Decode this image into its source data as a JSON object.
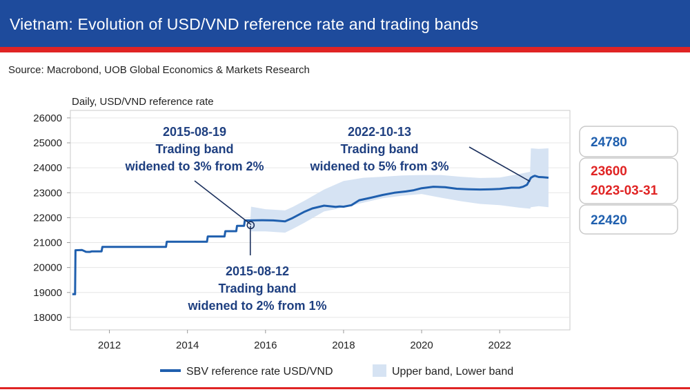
{
  "header": {
    "title": "Vietnam: Evolution of USD/VND reference rate and trading bands",
    "source": "Source: Macrobond, UOB Global Economics & Markets Research"
  },
  "colors": {
    "header_bg": "#1e4b9c",
    "accent_red": "#e02424",
    "line": "#1f5fae",
    "band": "#d6e3f3",
    "annotation": "#1e3f80",
    "box_blue": "#1f5fae",
    "box_red": "#e02424"
  },
  "chart_data": {
    "type": "line",
    "ylabel": "Daily, USD/VND reference rate",
    "xlim": [
      2011.0,
      2023.8
    ],
    "ylim": [
      17500,
      26300
    ],
    "yticks": [
      18000,
      19000,
      20000,
      21000,
      22000,
      23000,
      24000,
      25000,
      26000
    ],
    "xticks": [
      2012,
      2014,
      2016,
      2018,
      2020,
      2022
    ],
    "grid": "horizontal",
    "legend_position": "bottom",
    "series": [
      {
        "name": "SBV reference rate USD/VND",
        "style": "line",
        "x": [
          2011.05,
          2011.12,
          2011.13,
          2011.3,
          2011.4,
          2011.5,
          2011.55,
          2011.8,
          2011.82,
          2012.0,
          2012.02,
          2013.45,
          2013.47,
          2014.5,
          2014.52,
          2014.95,
          2014.97,
          2015.25,
          2015.27,
          2015.45,
          2015.47,
          2015.61,
          2015.63,
          2015.9,
          2016.2,
          2016.5,
          2016.7,
          2017.0,
          2017.2,
          2017.5,
          2017.8,
          2017.9,
          2018.0,
          2018.2,
          2018.4,
          2018.7,
          2019.0,
          2019.3,
          2019.6,
          2019.8,
          2020.0,
          2020.3,
          2020.6,
          2020.9,
          2021.2,
          2021.5,
          2021.8,
          2022.0,
          2022.3,
          2022.5,
          2022.6,
          2022.7,
          2022.8,
          2022.85,
          2022.9,
          2023.0,
          2023.1,
          2023.2,
          2023.25
        ],
        "y": [
          18932,
          18932,
          20693,
          20703,
          20630,
          20628,
          20650,
          20650,
          20828,
          20828,
          20828,
          20828,
          21036,
          21036,
          21246,
          21246,
          21458,
          21458,
          21673,
          21673,
          21890,
          21890,
          21890,
          21898,
          21890,
          21850,
          21990,
          22240,
          22370,
          22480,
          22430,
          22450,
          22440,
          22500,
          22700,
          22800,
          22910,
          23000,
          23050,
          23100,
          23180,
          23240,
          23220,
          23160,
          23140,
          23130,
          23140,
          23150,
          23200,
          23200,
          23240,
          23320,
          23600,
          23650,
          23680,
          23630,
          23620,
          23610,
          23600
        ]
      },
      {
        "name": "Upper band, Lower band",
        "style": "band",
        "x": [
          2011.05,
          2015.61,
          2015.63,
          2016.0,
          2016.5,
          2016.7,
          2017.0,
          2017.5,
          2018.0,
          2018.5,
          2019.0,
          2019.5,
          2020.0,
          2020.5,
          2021.0,
          2021.5,
          2022.0,
          2022.5,
          2022.78,
          2022.8,
          2023.0,
          2023.25
        ],
        "upper": [
          18932,
          21890,
          22440,
          22340,
          22290,
          22430,
          22680,
          23130,
          23470,
          23600,
          23640,
          23690,
          23710,
          23710,
          23640,
          23590,
          23610,
          23750,
          23840,
          24780,
          24760,
          24780
        ],
        "lower": [
          18932,
          21890,
          21450,
          21450,
          21400,
          21550,
          21800,
          22250,
          22410,
          22600,
          22780,
          22880,
          22950,
          22800,
          22660,
          22550,
          22500,
          22400,
          22360,
          22420,
          22460,
          22420
        ]
      }
    ],
    "annotations": [
      {
        "id": "ann1",
        "lines": [
          "2015-08-19",
          "Trading band",
          "widened to 3% from 2%"
        ],
        "x": 2015.63,
        "y": 21720
      },
      {
        "id": "ann2",
        "lines": [
          "2015-08-12",
          "Trading band",
          "widened to 2% from 1%"
        ],
        "x": 2015.61,
        "y": 21673
      },
      {
        "id": "ann3",
        "lines": [
          "2022-10-13",
          "Trading band",
          "widened to 5% from 3%"
        ],
        "x": 2022.78,
        "y": 23450
      }
    ],
    "callouts": {
      "upper": "24780",
      "current_value": "23600",
      "current_date": "2023-03-31",
      "lower": "22420"
    }
  },
  "legend": {
    "line_label": "SBV reference rate USD/VND",
    "band_label": "Upper band, Lower band"
  }
}
